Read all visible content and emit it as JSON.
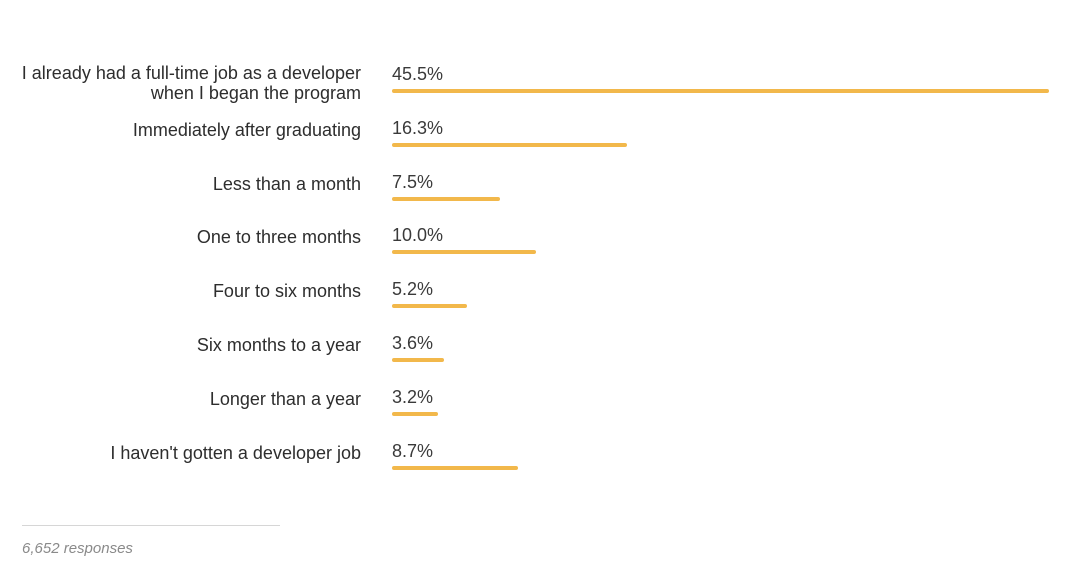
{
  "chart_data": {
    "type": "bar",
    "orientation": "horizontal",
    "categories": [
      "I already had a full-time job as a developer when I began the program",
      "Immediately after graduating",
      "Less than a month",
      "One to three months",
      "Four to six months",
      "Six months to a year",
      "Longer than a year",
      "I haven't gotten a developer job"
    ],
    "values": [
      45.5,
      16.3,
      7.5,
      10.0,
      5.2,
      3.6,
      3.2,
      8.7
    ],
    "value_labels": [
      "45.5%",
      "16.3%",
      "7.5%",
      "10.0%",
      "5.2%",
      "3.6%",
      "3.2%",
      "8.7%"
    ],
    "unit": "%",
    "xlim": [
      0,
      45.5
    ],
    "bar_color": "#f2b84b",
    "title": "",
    "xlabel": "",
    "ylabel": "",
    "grid": false,
    "legend": "none"
  },
  "footer": {
    "responses": "6,652 responses"
  }
}
